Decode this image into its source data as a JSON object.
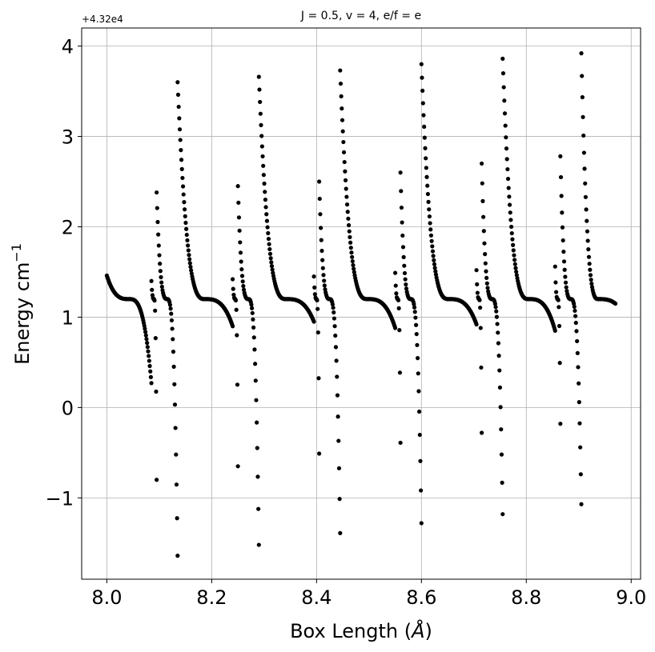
{
  "chart_data": {
    "type": "scatter",
    "title": "J = 0.5, v = 4, e/f = e",
    "xlabel_main": "Box Length (",
    "xlabel_unit": "Å",
    "xlabel_end": ")",
    "ylabel_main": "Energy cm",
    "ylabel_sup": "−1",
    "y_offset_label": "+4.32e4",
    "xlim": [
      7.952,
      9.018
    ],
    "ylim": [
      -1.9,
      4.2
    ],
    "xticks": [
      8.0,
      8.2,
      8.4,
      8.6,
      8.8,
      9.0
    ],
    "xtick_labels": [
      "8.0",
      "8.2",
      "8.4",
      "8.6",
      "8.8",
      "9.0"
    ],
    "yticks": [
      -1,
      0,
      1,
      2,
      3,
      4
    ],
    "ytick_labels": [
      "−1",
      "0",
      "1",
      "2",
      "3",
      "4"
    ],
    "grid": true,
    "marker_color": "#000000",
    "x_range": [
      8.0,
      8.97
    ],
    "branch_boundaries": [
      8.085,
      8.095,
      8.135,
      8.24,
      8.25,
      8.29,
      8.395,
      8.405,
      8.445,
      8.55,
      8.56,
      8.6,
      8.705,
      8.715,
      8.755,
      8.855,
      8.865,
      8.905
    ],
    "branch_start_energies": [
      1.46,
      1.4,
      2.38,
      3.6,
      1.42,
      2.45,
      3.66,
      1.45,
      2.5,
      3.73,
      1.49,
      2.6,
      3.8,
      1.52,
      2.7,
      3.86,
      1.56,
      2.78,
      3.92
    ],
    "branch_end_energies": [
      0.27,
      -0.8,
      -1.64,
      0.9,
      -0.65,
      -1.52,
      0.95,
      -0.51,
      -1.39,
      0.88,
      -0.39,
      -1.28,
      0.92,
      -0.28,
      -1.18,
      0.85,
      -0.18,
      -1.07,
      1.15
    ],
    "sample_points": [
      {
        "x": 8.0,
        "y": 1.46
      },
      {
        "x": 8.05,
        "y": 1.2
      },
      {
        "x": 8.08,
        "y": 0.95
      },
      {
        "x": 8.095,
        "y": 2.38
      },
      {
        "x": 8.12,
        "y": 1.15
      },
      {
        "x": 8.13,
        "y": 0.25
      },
      {
        "x": 8.14,
        "y": 3.6
      },
      {
        "x": 8.19,
        "y": 1.22
      },
      {
        "x": 8.23,
        "y": 1.0
      },
      {
        "x": 8.25,
        "y": 2.45
      },
      {
        "x": 8.28,
        "y": 0.8
      },
      {
        "x": 8.29,
        "y": 3.66
      },
      {
        "x": 8.35,
        "y": 1.22
      },
      {
        "x": 8.44,
        "y": 3.73
      },
      {
        "x": 8.5,
        "y": 1.2
      },
      {
        "x": 8.59,
        "y": 3.8
      },
      {
        "x": 8.65,
        "y": 1.18
      },
      {
        "x": 8.75,
        "y": 3.86
      },
      {
        "x": 8.8,
        "y": 1.2
      },
      {
        "x": 8.9,
        "y": 3.92
      },
      {
        "x": 8.97,
        "y": 1.15
      }
    ]
  }
}
